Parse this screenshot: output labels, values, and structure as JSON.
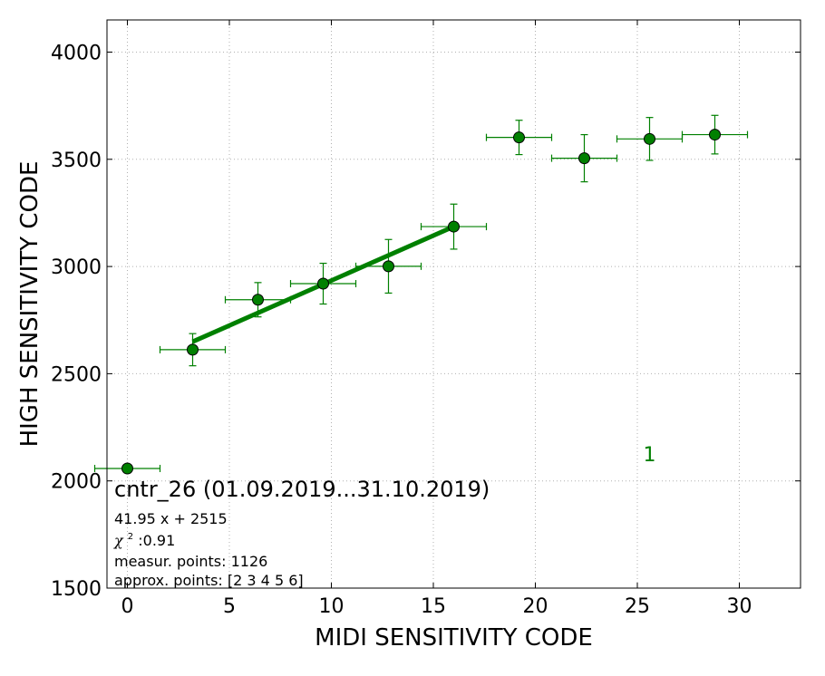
{
  "chart_data": {
    "type": "scatter",
    "xlabel": "MIDI SENSITIVITY CODE",
    "ylabel": "HIGH SENSITIVITY CODE",
    "xlim": [
      -1,
      33
    ],
    "ylim": [
      1500,
      4150
    ],
    "x_ticks": [
      0,
      5,
      10,
      15,
      20,
      25,
      30
    ],
    "y_ticks": [
      1500,
      2000,
      2500,
      3000,
      3500,
      4000
    ],
    "grid": true,
    "color": "#008000",
    "points": [
      {
        "x": 0.0,
        "y": 2058,
        "xerr": 1.6,
        "yerr": 0
      },
      {
        "x": 3.2,
        "y": 2612,
        "xerr": 1.6,
        "yerr": 75
      },
      {
        "x": 6.4,
        "y": 2845,
        "xerr": 1.6,
        "yerr": 80
      },
      {
        "x": 9.6,
        "y": 2920,
        "xerr": 1.6,
        "yerr": 95
      },
      {
        "x": 12.8,
        "y": 3001,
        "xerr": 1.6,
        "yerr": 125
      },
      {
        "x": 16.0,
        "y": 3186,
        "xerr": 1.6,
        "yerr": 105
      },
      {
        "x": 19.2,
        "y": 3602,
        "xerr": 1.6,
        "yerr": 80
      },
      {
        "x": 22.4,
        "y": 3505,
        "xerr": 1.6,
        "yerr": 110
      },
      {
        "x": 25.6,
        "y": 3595,
        "xerr": 1.6,
        "yerr": 100
      },
      {
        "x": 28.8,
        "y": 3615,
        "xerr": 1.6,
        "yerr": 90
      }
    ],
    "fit": {
      "slope": 41.95,
      "intercept": 2515,
      "x_range": [
        3.2,
        16.0
      ]
    },
    "series_label": "1",
    "series_label_pos": [
      25.6,
      2125
    ],
    "annotation": {
      "title": "cntr_26 (01.09.2019...31.10.2019)",
      "equation": "41.95 x + 2515",
      "chi_symbol": "χ",
      "chi_sup": "2",
      "chi_value": " :0.91",
      "measur": "measur. points: 1126",
      "approx": "approx. points: [2 3 4 5 6]"
    }
  }
}
